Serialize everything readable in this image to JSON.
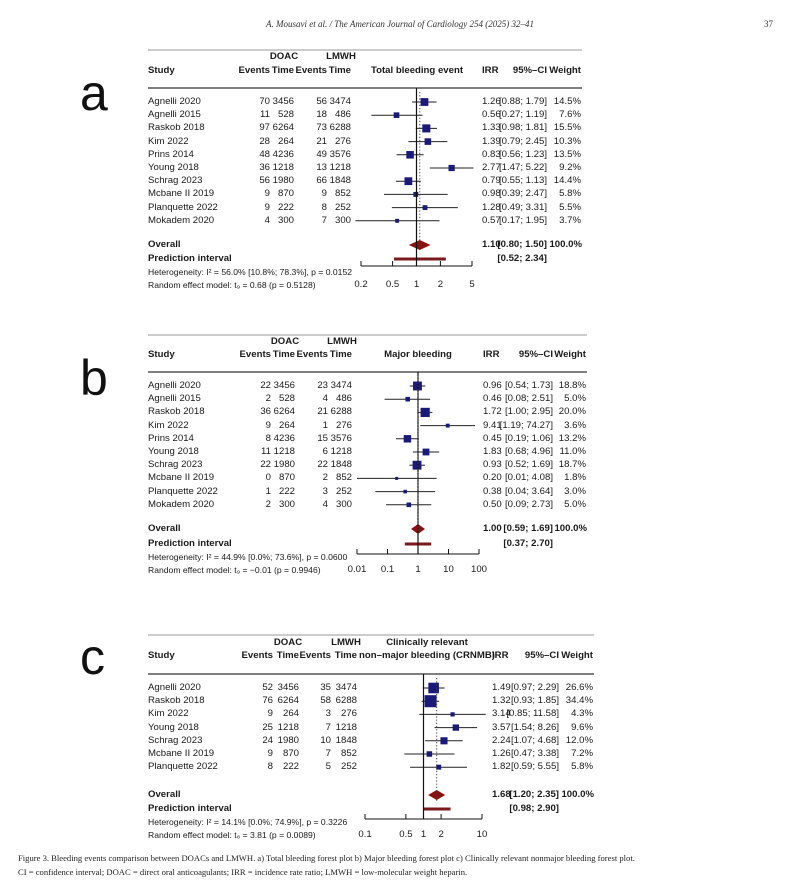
{
  "header": {
    "running_title": "A. Mousavi et al. / The American Journal of Cardiology 254 (2025) 32–41",
    "page_number": "37"
  },
  "caption": {
    "line1": "Figure 3. Bleeding events comparison between DOACs and LMWH. a) Total bleeding forest plot b) Major bleeding forest plot c) Clinically relevant nonmajor bleeding forest plot.",
    "line2": "CI = confidence interval; DOAC = direct oral anticoagulants; IRR = incidence rate ratio; LMWH = low-molecular weight heparin."
  },
  "colors": {
    "square": "#1a1a7a",
    "diamond": "#8b1010",
    "prediction": "#7a1a1a",
    "line": "#222222"
  },
  "chart_data": [
    {
      "type": "forest",
      "panel_label": "a",
      "x_scale": "log",
      "columns": {
        "study": "Study",
        "doac": "DOAC",
        "lmwh": "LMWH",
        "events": "Events",
        "time": "Time",
        "plot_title": "Total bleeding event",
        "plot_title2": "",
        "irr": "IRR",
        "ci": "95%–CI",
        "weight": "Weight"
      },
      "studies": [
        {
          "name": "Agnelli 2020",
          "doac_events": "70",
          "doac_time": "3456",
          "lmwh_events": "56",
          "lmwh_time": "3474",
          "irr": 1.26,
          "lo": 0.88,
          "hi": 1.79,
          "irr_text": "1.26",
          "ci_text": "[0.88; 1.79]",
          "weight": 14.5,
          "weight_text": "14.5%"
        },
        {
          "name": "Agnelli 2015",
          "doac_events": "11",
          "doac_time": "528",
          "lmwh_events": "18",
          "lmwh_time": "486",
          "irr": 0.56,
          "lo": 0.27,
          "hi": 1.19,
          "irr_text": "0.56",
          "ci_text": "[0.27; 1.19]",
          "weight": 7.6,
          "weight_text": "7.6%"
        },
        {
          "name": "Raskob 2018",
          "doac_events": "97",
          "doac_time": "6264",
          "lmwh_events": "73",
          "lmwh_time": "6288",
          "irr": 1.33,
          "lo": 0.98,
          "hi": 1.81,
          "irr_text": "1.33",
          "ci_text": "[0.98; 1.81]",
          "weight": 15.5,
          "weight_text": "15.5%"
        },
        {
          "name": "Kim 2022",
          "doac_events": "28",
          "doac_time": "264",
          "lmwh_events": "21",
          "lmwh_time": "276",
          "irr": 1.39,
          "lo": 0.79,
          "hi": 2.45,
          "irr_text": "1.39",
          "ci_text": "[0.79; 2.45]",
          "weight": 10.3,
          "weight_text": "10.3%"
        },
        {
          "name": "Prins 2014",
          "doac_events": "48",
          "doac_time": "4236",
          "lmwh_events": "49",
          "lmwh_time": "3576",
          "irr": 0.83,
          "lo": 0.56,
          "hi": 1.23,
          "irr_text": "0.83",
          "ci_text": "[0.56; 1.23]",
          "weight": 13.5,
          "weight_text": "13.5%"
        },
        {
          "name": "Young 2018",
          "doac_events": "36",
          "doac_time": "1218",
          "lmwh_events": "13",
          "lmwh_time": "1218",
          "irr": 2.77,
          "lo": 1.47,
          "hi": 5.22,
          "irr_text": "2.77",
          "ci_text": "[1.47; 5.22]",
          "weight": 9.2,
          "weight_text": "9.2%"
        },
        {
          "name": "Schrag 2023",
          "doac_events": "56",
          "doac_time": "1980",
          "lmwh_events": "66",
          "lmwh_time": "1848",
          "irr": 0.79,
          "lo": 0.55,
          "hi": 1.13,
          "irr_text": "0.79",
          "ci_text": "[0.55; 1.13]",
          "weight": 14.4,
          "weight_text": "14.4%"
        },
        {
          "name": "Mcbane II 2019",
          "doac_events": "9",
          "doac_time": "870",
          "lmwh_events": "9",
          "lmwh_time": "852",
          "irr": 0.98,
          "lo": 0.39,
          "hi": 2.47,
          "irr_text": "0.98",
          "ci_text": "[0.39; 2.47]",
          "weight": 5.8,
          "weight_text": "5.8%"
        },
        {
          "name": "Planquette 2022",
          "doac_events": "9",
          "doac_time": "222",
          "lmwh_events": "8",
          "lmwh_time": "252",
          "irr": 1.28,
          "lo": 0.49,
          "hi": 3.31,
          "irr_text": "1.28",
          "ci_text": "[0.49; 3.31]",
          "weight": 5.5,
          "weight_text": "5.5%"
        },
        {
          "name": "Mokadem 2020",
          "doac_events": "4",
          "doac_time": "300",
          "lmwh_events": "7",
          "lmwh_time": "300",
          "irr": 0.57,
          "lo": 0.17,
          "hi": 1.95,
          "irr_text": "0.57",
          "ci_text": "[0.17; 1.95]",
          "weight": 3.7,
          "weight_text": "3.7%"
        }
      ],
      "overall": {
        "label": "Overall",
        "irr": 1.1,
        "lo": 0.8,
        "hi": 1.5,
        "irr_text": "1.10",
        "ci_text": "[0.80; 1.50]",
        "weight_text": "100.0%"
      },
      "prediction": {
        "label": "Prediction interval",
        "lo": 0.52,
        "hi": 2.34,
        "ci_text": "[0.52; 2.34]"
      },
      "heterogeneity": "Heterogeneity: I² = 56.0% [10.8%; 78.3%], p = 0.0152",
      "random_effect": "Random effect model: t₉ = 0.68 (p = 0.5128)",
      "xlim": [
        0.2,
        5
      ],
      "ticks": [
        0.2,
        0.5,
        1,
        2,
        5
      ],
      "tick_labels": [
        "0.2",
        "0.5",
        "1",
        "2",
        "5"
      ]
    },
    {
      "type": "forest",
      "panel_label": "b",
      "x_scale": "log",
      "columns": {
        "study": "Study",
        "doac": "DOAC",
        "lmwh": "LMWH",
        "events": "Events",
        "time": "Time",
        "plot_title": "Major bleeding",
        "plot_title2": "",
        "irr": "IRR",
        "ci": "95%–CI",
        "weight": "Weight"
      },
      "studies": [
        {
          "name": "Agnelli 2020",
          "doac_events": "22",
          "doac_time": "3456",
          "lmwh_events": "23",
          "lmwh_time": "3474",
          "irr": 0.96,
          "lo": 0.54,
          "hi": 1.73,
          "irr_text": "0.96",
          "ci_text": "[0.54; 1.73]",
          "weight": 18.8,
          "weight_text": "18.8%"
        },
        {
          "name": "Agnelli 2015",
          "doac_events": "2",
          "doac_time": "528",
          "lmwh_events": "4",
          "lmwh_time": "486",
          "irr": 0.46,
          "lo": 0.08,
          "hi": 2.51,
          "irr_text": "0.46",
          "ci_text": "[0.08; 2.51]",
          "weight": 5.0,
          "weight_text": "5.0%"
        },
        {
          "name": "Raskob 2018",
          "doac_events": "36",
          "doac_time": "6264",
          "lmwh_events": "21",
          "lmwh_time": "6288",
          "irr": 1.72,
          "lo": 1.0,
          "hi": 2.95,
          "irr_text": "1.72",
          "ci_text": "[1.00; 2.95]",
          "weight": 20.0,
          "weight_text": "20.0%"
        },
        {
          "name": "Kim 2022",
          "doac_events": "9",
          "doac_time": "264",
          "lmwh_events": "1",
          "lmwh_time": "276",
          "irr": 9.41,
          "lo": 1.19,
          "hi": 74.27,
          "irr_text": "9.41",
          "ci_text": "[1.19; 74.27]",
          "weight": 3.6,
          "weight_text": "3.6%"
        },
        {
          "name": "Prins 2014",
          "doac_events": "8",
          "doac_time": "4236",
          "lmwh_events": "15",
          "lmwh_time": "3576",
          "irr": 0.45,
          "lo": 0.19,
          "hi": 1.06,
          "irr_text": "0.45",
          "ci_text": "[0.19; 1.06]",
          "weight": 13.2,
          "weight_text": "13.2%"
        },
        {
          "name": "Young 2018",
          "doac_events": "11",
          "doac_time": "1218",
          "lmwh_events": "6",
          "lmwh_time": "1218",
          "irr": 1.83,
          "lo": 0.68,
          "hi": 4.96,
          "irr_text": "1.83",
          "ci_text": "[0.68; 4.96]",
          "weight": 11.0,
          "weight_text": "11.0%"
        },
        {
          "name": "Schrag 2023",
          "doac_events": "22",
          "doac_time": "1980",
          "lmwh_events": "22",
          "lmwh_time": "1848",
          "irr": 0.93,
          "lo": 0.52,
          "hi": 1.69,
          "irr_text": "0.93",
          "ci_text": "[0.52; 1.69]",
          "weight": 18.7,
          "weight_text": "18.7%"
        },
        {
          "name": "Mcbane II 2019",
          "doac_events": "0",
          "doac_time": "870",
          "lmwh_events": "2",
          "lmwh_time": "852",
          "irr": 0.2,
          "lo": 0.01,
          "hi": 4.08,
          "irr_text": "0.20",
          "ci_text": "[0.01; 4.08]",
          "weight": 1.8,
          "weight_text": "1.8%"
        },
        {
          "name": "Planquette 2022",
          "doac_events": "1",
          "doac_time": "222",
          "lmwh_events": "3",
          "lmwh_time": "252",
          "irr": 0.38,
          "lo": 0.04,
          "hi": 3.64,
          "irr_text": "0.38",
          "ci_text": "[0.04; 3.64]",
          "weight": 3.0,
          "weight_text": "3.0%"
        },
        {
          "name": "Mokadem 2020",
          "doac_events": "2",
          "doac_time": "300",
          "lmwh_events": "4",
          "lmwh_time": "300",
          "irr": 0.5,
          "lo": 0.09,
          "hi": 2.73,
          "irr_text": "0.50",
          "ci_text": "[0.09; 2.73]",
          "weight": 5.0,
          "weight_text": "5.0%"
        }
      ],
      "overall": {
        "label": "Overall",
        "irr": 1.0,
        "lo": 0.59,
        "hi": 1.69,
        "irr_text": "1.00",
        "ci_text": "[0.59; 1.69]",
        "weight_text": "100.0%"
      },
      "prediction": {
        "label": "Prediction interval",
        "lo": 0.37,
        "hi": 2.7,
        "ci_text": "[0.37; 2.70]"
      },
      "heterogeneity": "Heterogeneity: I² = 44.9% [0.0%; 73.6%], p = 0.0600",
      "random_effect": "Random effect model: t₉ = −0.01 (p = 0.9946)",
      "xlim": [
        0.01,
        100
      ],
      "ticks": [
        0.01,
        0.1,
        1,
        10,
        100
      ],
      "tick_labels": [
        "0.01",
        "0.1",
        "1",
        "10",
        "100"
      ]
    },
    {
      "type": "forest",
      "panel_label": "c",
      "x_scale": "log",
      "columns": {
        "study": "Study",
        "doac": "DOAC",
        "lmwh": "LMWH",
        "events": "Events",
        "time": "Time",
        "plot_title": "Clinically relevant",
        "plot_title2": "non–major bleeding (CRNMB)",
        "irr": "IRR",
        "ci": "95%–CI",
        "weight": "Weight"
      },
      "studies": [
        {
          "name": "Agnelli 2020",
          "doac_events": "52",
          "doac_time": "3456",
          "lmwh_events": "35",
          "lmwh_time": "3474",
          "irr": 1.49,
          "lo": 0.97,
          "hi": 2.29,
          "irr_text": "1.49",
          "ci_text": "[0.97; 2.29]",
          "weight": 26.6,
          "weight_text": "26.6%"
        },
        {
          "name": "Raskob 2018",
          "doac_events": "76",
          "doac_time": "6264",
          "lmwh_events": "58",
          "lmwh_time": "6288",
          "irr": 1.32,
          "lo": 0.93,
          "hi": 1.85,
          "irr_text": "1.32",
          "ci_text": "[0.93; 1.85]",
          "weight": 34.4,
          "weight_text": "34.4%"
        },
        {
          "name": "Kim 2022",
          "doac_events": "9",
          "doac_time": "264",
          "lmwh_events": "3",
          "lmwh_time": "276",
          "irr": 3.14,
          "lo": 0.85,
          "hi": 11.58,
          "irr_text": "3.14",
          "ci_text": "[0.85; 11.58]",
          "weight": 4.3,
          "weight_text": "4.3%"
        },
        {
          "name": "Young 2018",
          "doac_events": "25",
          "doac_time": "1218",
          "lmwh_events": "7",
          "lmwh_time": "1218",
          "irr": 3.57,
          "lo": 1.54,
          "hi": 8.26,
          "irr_text": "3.57",
          "ci_text": "[1.54; 8.26]",
          "weight": 9.6,
          "weight_text": "9.6%"
        },
        {
          "name": "Schrag 2023",
          "doac_events": "24",
          "doac_time": "1980",
          "lmwh_events": "10",
          "lmwh_time": "1848",
          "irr": 2.24,
          "lo": 1.07,
          "hi": 4.68,
          "irr_text": "2.24",
          "ci_text": "[1.07; 4.68]",
          "weight": 12.0,
          "weight_text": "12.0%"
        },
        {
          "name": "Mcbane II 2019",
          "doac_events": "9",
          "doac_time": "870",
          "lmwh_events": "7",
          "lmwh_time": "852",
          "irr": 1.26,
          "lo": 0.47,
          "hi": 3.38,
          "irr_text": "1.26",
          "ci_text": "[0.47; 3.38]",
          "weight": 7.2,
          "weight_text": "7.2%"
        },
        {
          "name": "Planquette 2022",
          "doac_events": "8",
          "doac_time": "222",
          "lmwh_events": "5",
          "lmwh_time": "252",
          "irr": 1.82,
          "lo": 0.59,
          "hi": 5.55,
          "irr_text": "1.82",
          "ci_text": "[0.59; 5.55]",
          "weight": 5.8,
          "weight_text": "5.8%"
        }
      ],
      "overall": {
        "label": "Overall",
        "irr": 1.68,
        "lo": 1.2,
        "hi": 2.35,
        "irr_text": "1.68",
        "ci_text": "[1.20; 2.35]",
        "weight_text": "100.0%"
      },
      "prediction": {
        "label": "Prediction interval",
        "lo": 0.98,
        "hi": 2.9,
        "ci_text": "[0.98; 2.90]"
      },
      "heterogeneity": "Heterogeneity: I² = 14.1% [0.0%; 74.9%], p = 0.3226",
      "random_effect": "Random effect model: t₆ = 3.81 (p = 0.0089)",
      "xlim": [
        0.1,
        10
      ],
      "ticks": [
        0.1,
        0.5,
        1,
        2,
        10
      ],
      "tick_labels": [
        "0.1",
        "0.5",
        "1",
        "2",
        "10"
      ]
    }
  ]
}
